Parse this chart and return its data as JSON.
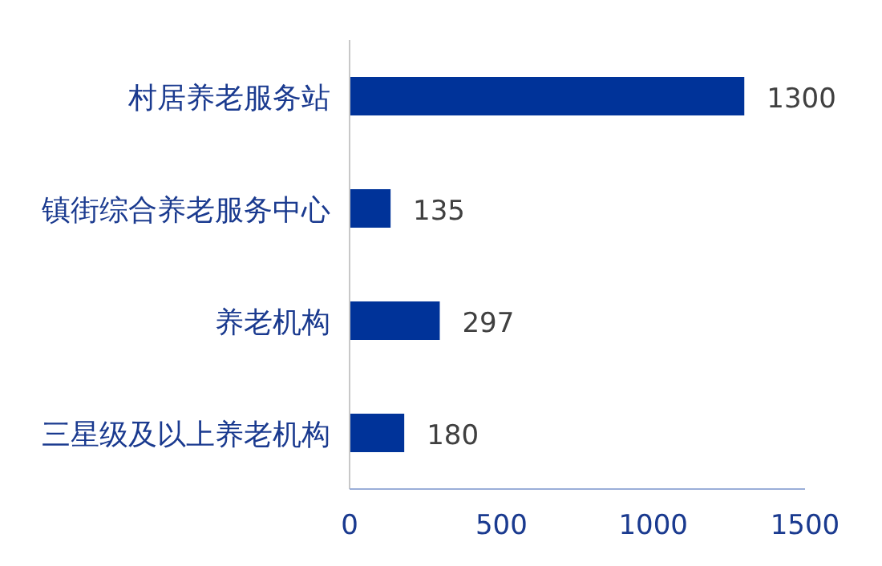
{
  "chart_data": {
    "type": "bar",
    "orientation": "horizontal",
    "categories": [
      "村居养老服务站",
      "镇街综合养老服务中心",
      "养老机构",
      "三星级及以上养老机构"
    ],
    "values": [
      1300,
      135,
      297,
      180
    ],
    "color": "#003399",
    "xlim": [
      0,
      1500
    ],
    "xticks": [
      0,
      500,
      1000,
      1500
    ],
    "data_labels": true,
    "grid": false
  }
}
